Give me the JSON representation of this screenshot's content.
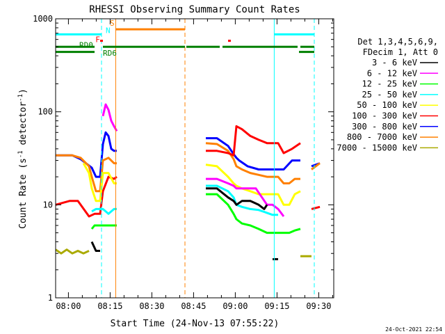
{
  "chart_data": {
    "type": "line",
    "title": "RHESSI Observing Summary Count Rates",
    "xlabel": "Start Time (24-Nov-13 07:55:22)",
    "ylabel_main": "Count Rate (s",
    "ylabel_sup": "-1",
    "ylabel_rest": " detector",
    "ylabel_sup2": "-1",
    "ylabel_end": ")",
    "yscale": "log",
    "ylim": [
      1,
      1000
    ],
    "xlim_minutes": [
      0,
      100
    ],
    "x_ticks": [
      {
        "t": 4.6,
        "label": "08:00"
      },
      {
        "t": 19.6,
        "label": "08:15"
      },
      {
        "t": 34.6,
        "label": "08:30"
      },
      {
        "t": 49.6,
        "label": "08:45"
      },
      {
        "t": 64.6,
        "label": "09:00"
      },
      {
        "t": 79.6,
        "label": "09:15"
      },
      {
        "t": 94.6,
        "label": "09:30"
      }
    ],
    "y_ticks": [
      {
        "v": 1,
        "label": "1"
      },
      {
        "v": 10,
        "label": "10"
      },
      {
        "v": 100,
        "label": "100"
      },
      {
        "v": 1000,
        "label": "1000"
      }
    ],
    "legend_header": [
      "Det 1,3,4,5,6,9,",
      "FDecim 1, Att 0"
    ],
    "legend": [
      {
        "label": "3 - 6 keV",
        "color": "#000000"
      },
      {
        "label": "6 - 12 keV",
        "color": "#ff00ff"
      },
      {
        "label": "12 - 25 keV",
        "color": "#00ff00"
      },
      {
        "label": "25 - 50 keV",
        "color": "#00ffff"
      },
      {
        "label": "50 - 100 keV",
        "color": "#ffff00"
      },
      {
        "label": "100 - 300 keV",
        "color": "#ff0000"
      },
      {
        "label": "300 - 800 keV",
        "color": "#0000ff"
      },
      {
        "label": "800 - 7000 keV",
        "color": "#ff8000"
      },
      {
        "label": "7000 - 15000 keV",
        "color": "#aaaa00"
      }
    ],
    "series": [
      {
        "name": "300 - 800 keV",
        "color": "#0000ff",
        "segments": [
          [
            [
              0,
              34
            ],
            [
              6,
              34
            ],
            [
              9,
              31
            ],
            [
              13,
              25
            ],
            [
              14.5,
              20
            ],
            [
              16,
              20
            ],
            [
              17,
              45
            ],
            [
              18,
              60
            ],
            [
              19,
              55
            ],
            [
              20,
              40
            ],
            [
              21,
              38
            ],
            [
              22,
              38
            ]
          ],
          [
            [
              54,
              52
            ],
            [
              58,
              52
            ],
            [
              62,
              43
            ],
            [
              64,
              35
            ],
            [
              65,
              32
            ],
            [
              66,
              30
            ],
            [
              69,
              26
            ],
            [
              73,
              24
            ],
            [
              76,
              24
            ],
            [
              78,
              24
            ],
            [
              82,
              24
            ],
            [
              85,
              30
            ],
            [
              88,
              30
            ]
          ],
          [
            [
              92,
              26
            ],
            [
              95,
              28
            ]
          ]
        ]
      },
      {
        "name": "800 - 7000 keV",
        "color": "#ff8000",
        "segments": [
          [
            [
              0,
              34
            ],
            [
              6,
              34
            ],
            [
              9,
              32
            ],
            [
              12,
              26
            ],
            [
              13,
              20
            ],
            [
              14.5,
              14
            ],
            [
              16,
              14
            ],
            [
              17,
              30
            ],
            [
              19,
              32
            ],
            [
              21,
              28
            ],
            [
              22,
              28
            ]
          ],
          [
            [
              54,
              46
            ],
            [
              58,
              45
            ],
            [
              62,
              38
            ],
            [
              64,
              31
            ],
            [
              65,
              26
            ],
            [
              67,
              24
            ],
            [
              70,
              22
            ],
            [
              73,
              21
            ],
            [
              76,
              20
            ],
            [
              78,
              20
            ],
            [
              80,
              20
            ],
            [
              82,
              17
            ],
            [
              84,
              17
            ],
            [
              86,
              19
            ],
            [
              88,
              19
            ]
          ],
          [
            [
              92,
              24
            ],
            [
              95,
              28
            ]
          ]
        ]
      },
      {
        "name": "100 - 300 keV",
        "color": "#ff0000",
        "segments": [
          [
            [
              0,
              10
            ],
            [
              5,
              11
            ],
            [
              8,
              11
            ],
            [
              9,
              10
            ],
            [
              12,
              7.5
            ],
            [
              14,
              8
            ],
            [
              16,
              8
            ],
            [
              17,
              14
            ],
            [
              19,
              20
            ],
            [
              21,
              19
            ],
            [
              22,
              20
            ]
          ],
          [
            [
              54,
              38
            ],
            [
              58,
              38
            ],
            [
              62,
              36
            ],
            [
              64,
              34
            ],
            [
              65,
              70
            ],
            [
              67,
              65
            ],
            [
              70,
              55
            ],
            [
              73,
              50
            ],
            [
              76,
              46
            ],
            [
              78,
              46
            ],
            [
              80,
              46
            ],
            [
              82,
              36
            ],
            [
              85,
              40
            ],
            [
              88,
              46
            ]
          ],
          [
            [
              92,
              9
            ],
            [
              95,
              9.5
            ]
          ]
        ]
      },
      {
        "name": "50 - 100 keV",
        "color": "#ffff00",
        "segments": [
          [
            [
              10,
              28
            ],
            [
              12,
              22
            ],
            [
              13,
              15
            ],
            [
              14.5,
              11
            ],
            [
              16,
              11
            ],
            [
              17,
              22
            ],
            [
              19,
              22
            ],
            [
              21,
              17
            ],
            [
              22,
              17
            ]
          ],
          [
            [
              54,
              27
            ],
            [
              58,
              26
            ],
            [
              62,
              20
            ],
            [
              64,
              17
            ],
            [
              65,
              16
            ],
            [
              67,
              15
            ],
            [
              70,
              14
            ],
            [
              73,
              13
            ],
            [
              76,
              13
            ],
            [
              78,
              13
            ],
            [
              80,
              13
            ],
            [
              82,
              10
            ],
            [
              84,
              10
            ],
            [
              86,
              13
            ],
            [
              88,
              14
            ]
          ]
        ]
      },
      {
        "name": "6 - 12 keV",
        "color": "#ff00ff",
        "segments": [
          [
            [
              17,
              90
            ],
            [
              18,
              120
            ],
            [
              19,
              105
            ],
            [
              20,
              80
            ],
            [
              21,
              70
            ],
            [
              22,
              62
            ]
          ],
          [
            [
              54,
              19
            ],
            [
              58,
              19
            ],
            [
              62,
              17
            ],
            [
              64,
              16
            ],
            [
              65,
              15
            ],
            [
              68,
              15
            ],
            [
              72,
              15
            ],
            [
              76,
              10
            ],
            [
              78,
              10
            ],
            [
              80,
              9
            ],
            [
              82,
              7.5
            ]
          ]
        ]
      },
      {
        "name": "25 - 50 keV",
        "color": "#00ffff",
        "segments": [
          [
            [
              13,
              8.5
            ],
            [
              14.5,
              9
            ],
            [
              16,
              9
            ],
            [
              17,
              9
            ],
            [
              19,
              8
            ],
            [
              21,
              9
            ],
            [
              22,
              9
            ]
          ],
          [
            [
              54,
              16
            ],
            [
              58,
              16
            ],
            [
              62,
              14
            ],
            [
              64,
              12
            ],
            [
              65,
              10
            ],
            [
              67,
              9.5
            ],
            [
              70,
              9
            ],
            [
              73,
              8.8
            ],
            [
              76,
              8.2
            ],
            [
              78,
              7.8
            ],
            [
              80,
              7.8
            ]
          ]
        ]
      },
      {
        "name": "12 - 25 keV",
        "color": "#00ff00",
        "segments": [
          [
            [
              13,
              5.5
            ],
            [
              14,
              6
            ],
            [
              16,
              6
            ],
            [
              17,
              6
            ],
            [
              18,
              6
            ],
            [
              20,
              6
            ],
            [
              22,
              6
            ]
          ],
          [
            [
              54,
              13
            ],
            [
              58,
              13
            ],
            [
              62,
              10
            ],
            [
              64,
              8
            ],
            [
              65,
              7
            ],
            [
              67,
              6.3
            ],
            [
              70,
              6
            ],
            [
              73,
              5.5
            ],
            [
              76,
              5
            ],
            [
              78,
              5
            ],
            [
              80,
              5
            ],
            [
              82,
              5
            ],
            [
              84,
              5
            ],
            [
              86,
              5.3
            ],
            [
              88,
              5.5
            ]
          ]
        ]
      },
      {
        "name": "3 - 6 keV",
        "color": "#000000",
        "segments": [
          [
            [
              13,
              4
            ],
            [
              14.5,
              3.2
            ],
            [
              16,
              3.2
            ]
          ],
          [
            [
              54,
              15
            ],
            [
              58,
              15
            ],
            [
              62,
              12
            ],
            [
              64,
              11
            ],
            [
              65,
              10
            ],
            [
              67,
              11
            ],
            [
              70,
              11
            ],
            [
              73,
              10
            ],
            [
              75,
              9
            ],
            [
              76,
              10
            ]
          ],
          [
            [
              78,
              2.6
            ],
            [
              80,
              2.6
            ]
          ]
        ]
      },
      {
        "name": "7000 - 15000 keV",
        "color": "#aaaa00",
        "segments": [
          [
            [
              0,
              3.3
            ],
            [
              2,
              3
            ],
            [
              4,
              3.3
            ],
            [
              6,
              3
            ],
            [
              8,
              3.2
            ],
            [
              10,
              3
            ],
            [
              12,
              3.2
            ]
          ],
          [
            [
              88,
              2.8
            ],
            [
              92,
              2.8
            ]
          ]
        ]
      }
    ],
    "dashed_lines": [
      {
        "t": 16.5,
        "color": "#00ffff"
      },
      {
        "t": 46.5,
        "color": "#ff8000"
      },
      {
        "t": 93.0,
        "color": "#00ffff"
      }
    ],
    "solid_lines": [
      {
        "t": 21.6,
        "color": "#ff8000"
      },
      {
        "t": 78.6,
        "color": "#00ffff"
      }
    ],
    "state_bars": [
      {
        "name": "night",
        "color": "#00ffff",
        "y": 680,
        "spans": [
          [
            0,
            16.5
          ],
          [
            78.6,
            93.0
          ]
        ]
      },
      {
        "name": "saa",
        "color": "#ff8000",
        "y": 770,
        "spans": [
          [
            21.6,
            46.5
          ]
        ]
      },
      {
        "name": "rd",
        "color": "#008000",
        "y": 500,
        "spans": [
          [
            0,
            14
          ],
          [
            17,
            46.5
          ],
          [
            47,
            59
          ],
          [
            60,
            87
          ],
          [
            88,
            93
          ]
        ]
      },
      {
        "name": "rd-lower",
        "color": "#008000",
        "y": 440,
        "spans": [
          [
            0,
            14
          ],
          [
            87.5,
            93
          ]
        ]
      },
      {
        "name": "flare-marks",
        "color": "#ff0000",
        "y": 580,
        "spans": [
          [
            16,
            17
          ],
          [
            62,
            63
          ]
        ]
      }
    ],
    "annotations": [
      {
        "text": "S",
        "t": 19.5,
        "v": 840,
        "color": "#ff8000"
      },
      {
        "text": "N",
        "t": 18.0,
        "v": 700,
        "color": "#00ffff"
      },
      {
        "text": "F",
        "t": 14.3,
        "v": 560,
        "color": "#ff0000"
      },
      {
        "text": "RD0",
        "t": 8.5,
        "v": 490,
        "color": "#008000"
      },
      {
        "text": "RD6",
        "t": 17.0,
        "v": 400,
        "color": "#008000"
      }
    ],
    "footer_timestamp": "24-Oct-2021 22:54"
  }
}
